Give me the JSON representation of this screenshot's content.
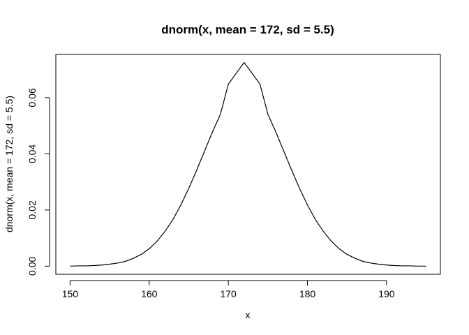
{
  "chart_data": {
    "type": "line",
    "title": "dnorm(x, mean = 172, sd = 5.5)",
    "xlabel": "x",
    "ylabel": "dnorm(x, mean = 172, sd = 5.5)",
    "xlim": [
      148.2,
      196.8
    ],
    "ylim": [
      -0.0029,
      0.0754
    ],
    "x_ticks": [
      150,
      160,
      170,
      180,
      190
    ],
    "x_tick_labels": [
      "150",
      "160",
      "170",
      "180",
      "190"
    ],
    "y_ticks": [
      0.0,
      0.02,
      0.04,
      0.06
    ],
    "y_tick_labels": [
      "0.00",
      "0.02",
      "0.04",
      "0.06"
    ],
    "grid": false,
    "legend": "none",
    "series": [
      {
        "x": [
          150,
          151,
          152,
          153,
          154,
          155,
          156,
          157,
          158,
          159,
          160,
          161,
          162,
          163,
          164,
          165,
          166,
          167,
          168,
          169,
          170,
          171,
          172,
          173,
          174,
          175,
          176,
          177,
          178,
          179,
          180,
          181,
          182,
          183,
          184,
          185,
          186,
          187,
          188,
          189,
          190,
          191,
          192,
          193,
          194,
          195
        ],
        "values": [
          0.0,
          0.0001,
          0.0001,
          0.0002,
          0.0004,
          0.0007,
          0.0011,
          0.0017,
          0.0028,
          0.0042,
          0.0062,
          0.0089,
          0.0124,
          0.0166,
          0.0218,
          0.0277,
          0.0342,
          0.041,
          0.0478,
          0.0541,
          0.0648,
          0.0687,
          0.0725,
          0.0687,
          0.0648,
          0.0541,
          0.0478,
          0.041,
          0.0342,
          0.0277,
          0.0218,
          0.0166,
          0.0124,
          0.0089,
          0.0062,
          0.0042,
          0.0028,
          0.0017,
          0.0011,
          0.0007,
          0.0004,
          0.0002,
          0.0001,
          0.0001,
          0.0,
          0.0
        ]
      }
    ]
  }
}
